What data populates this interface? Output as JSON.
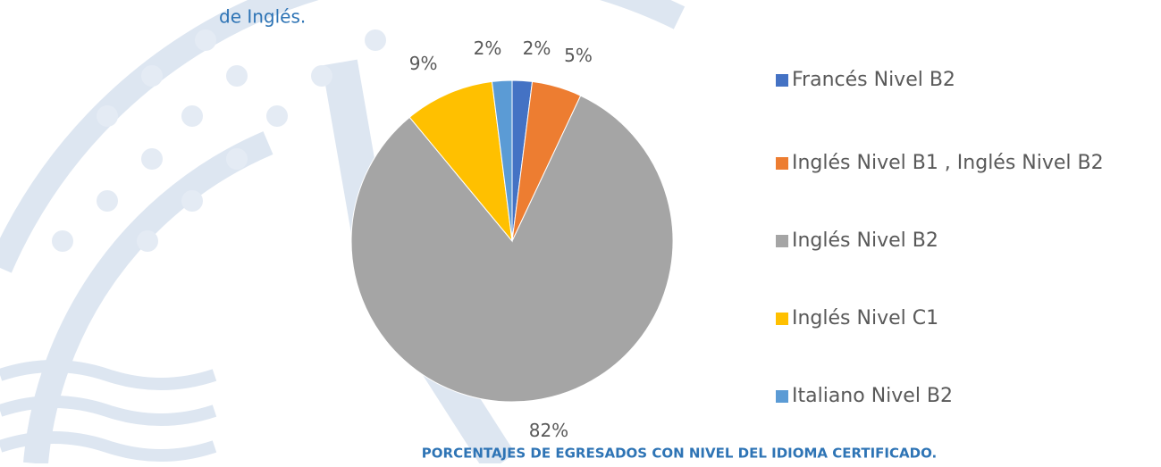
{
  "text_fragment": "de Inglés.",
  "chart_data": {
    "type": "pie",
    "caption": "PORCENTAJES DE EGRESADOS CON NIVEL DEL IDIOMA CERTIFICADO.",
    "categories": [
      "Francés Nivel B2",
      "Inglés Nivel B1 , Inglés Nivel B2",
      "Inglés Nivel B2",
      "Inglés Nivel C1",
      "Italiano Nivel B2"
    ],
    "values": [
      2,
      5,
      82,
      9,
      2
    ],
    "value_labels": [
      "2%",
      "5%",
      "82%",
      "9%",
      "2%"
    ],
    "colors": [
      "#4472c4",
      "#ed7d31",
      "#a5a5a5",
      "#ffc000",
      "#5b9bd5"
    ],
    "legend": "right"
  }
}
